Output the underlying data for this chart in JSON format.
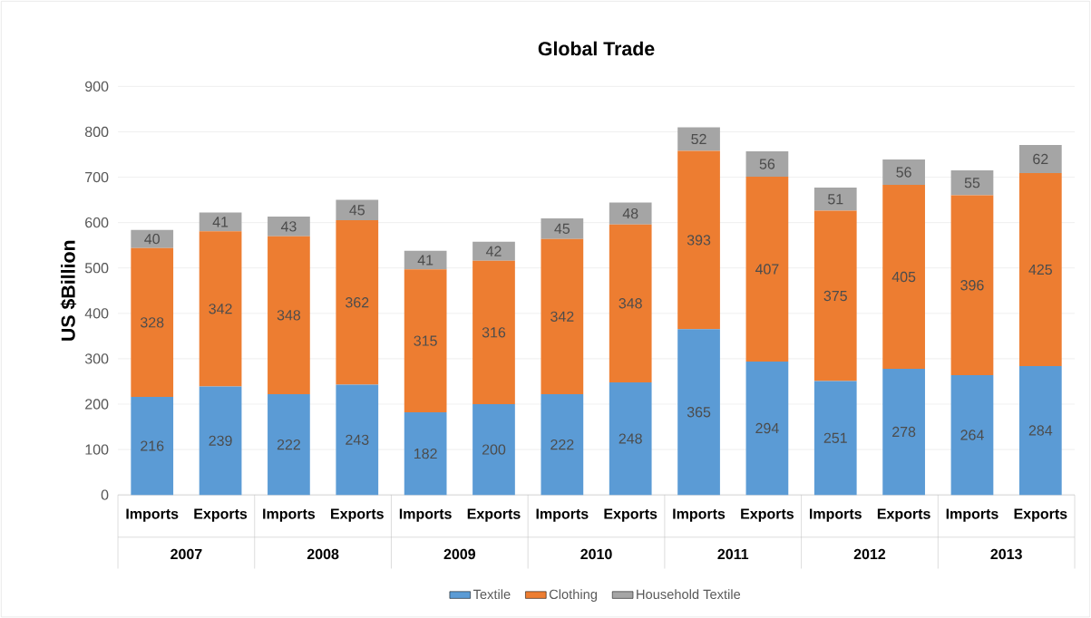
{
  "chart_data": {
    "type": "bar",
    "title": "Global Trade",
    "ylabel": "US $Billion",
    "stacked": true,
    "categories": [
      "Imports",
      "Exports",
      "Imports",
      "Exports",
      "Imports",
      "Exports",
      "Imports",
      "Exports",
      "Imports",
      "Exports",
      "Imports",
      "Exports",
      "Imports",
      "Exports"
    ],
    "annotations": [
      "2007",
      "2008",
      "2009",
      "2010",
      "2011",
      "2012",
      "2013"
    ],
    "series": [
      {
        "name": "Textile",
        "color": "#5b9bd5",
        "values": [
          216,
          239,
          222,
          243,
          182,
          200,
          222,
          248,
          365,
          294,
          251,
          278,
          264,
          284
        ]
      },
      {
        "name": "Clothing",
        "color": "#ed7d31",
        "values": [
          328,
          342,
          348,
          362,
          315,
          316,
          342,
          348,
          393,
          407,
          375,
          405,
          396,
          425
        ]
      },
      {
        "name": "Household Textile",
        "color": "#a5a5a5",
        "values": [
          40,
          41,
          43,
          45,
          41,
          42,
          45,
          48,
          52,
          56,
          51,
          56,
          55,
          62
        ]
      }
    ],
    "ylim": [
      0,
      900
    ],
    "yticks": [
      0,
      100,
      200,
      300,
      400,
      500,
      600,
      700,
      800,
      900
    ],
    "grid": "y",
    "legend": "bottom",
    "data_labels": true
  }
}
